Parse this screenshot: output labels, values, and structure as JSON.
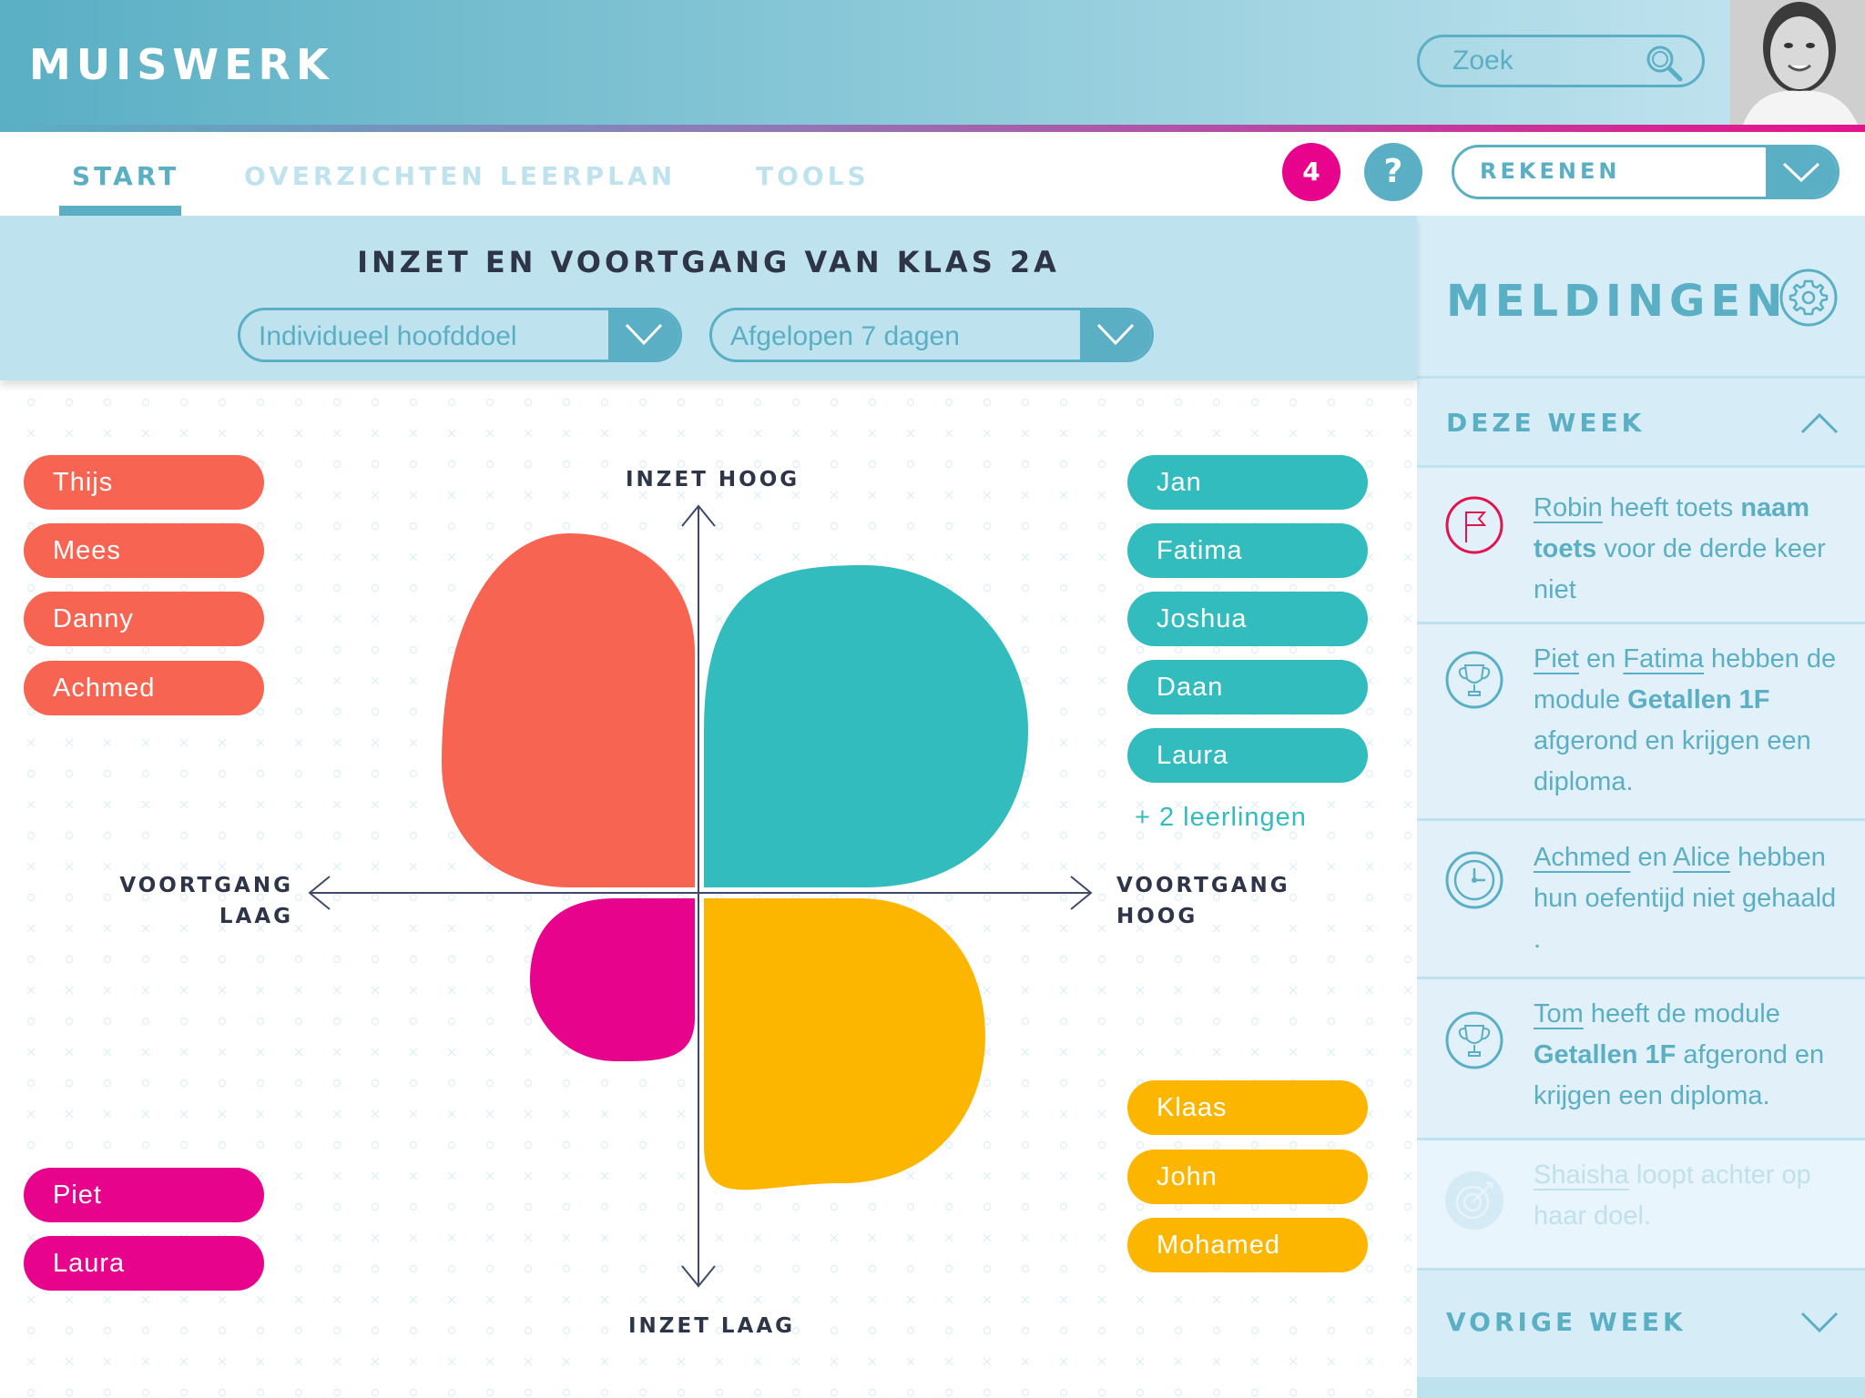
{
  "app": {
    "title": "MUISWERK"
  },
  "search": {
    "placeholder": "Zoek",
    "icon": "search-icon"
  },
  "user": {
    "avatar": "user-avatar-photo"
  },
  "tabs": [
    {
      "label": "START",
      "active": true
    },
    {
      "label": "OVERZICHTEN",
      "active": false
    },
    {
      "label": "LEERPLAN",
      "active": false
    },
    {
      "label": "TOOLS",
      "active": false
    }
  ],
  "toolbar": {
    "notification_count": "4",
    "help_label": "?",
    "subject_selected": "REKENEN"
  },
  "filters": {
    "title": "INZET EN VOORTGANG VAN KLAS 2A",
    "goal_selected": "Individueel  hoofddoel",
    "period_selected": "Afgelopen 7 dagen"
  },
  "colors": {
    "brand": "#5aafc4",
    "accent_pink": "#e8038c",
    "coral": "#f76451",
    "teal": "#33bcbd",
    "magenta": "#e8038c",
    "amber": "#fdb600",
    "dark_text": "#2e3548"
  },
  "chart": {
    "axis_top": "INZET HOOG",
    "axis_bottom": "INZET LAAG",
    "axis_left_line1": "VOORTGANG",
    "axis_left_line2": "LAAG",
    "axis_right_line1": "VOORTGANG",
    "axis_right_line2": "HOOG",
    "quadrants": {
      "high_effort_low_progress": {
        "color": "#f76451",
        "students": [
          "Thijs",
          "Mees",
          "Danny",
          "Achmed"
        ]
      },
      "high_effort_high_progress": {
        "color": "#33bcbd",
        "students": [
          "Jan",
          "Fatima",
          "Joshua",
          "Daan",
          "Laura"
        ],
        "more": "+ 2 leerlingen"
      },
      "low_effort_low_progress": {
        "color": "#e8038c",
        "students": [
          "Piet",
          "Laura"
        ]
      },
      "low_effort_high_progress": {
        "color": "#fdb600",
        "students": [
          "Klaas",
          "John",
          "Mohamed"
        ]
      }
    }
  },
  "sidebar": {
    "title": "MELDINGEN",
    "settings_icon": "gear-icon",
    "this_week": "DEZE WEEK",
    "last_week": "VORIGE WEEK",
    "notifications": [
      {
        "icon": "flag-icon",
        "parts": [
          [
            "link",
            "Robin"
          ],
          [
            "text",
            " heeft toets "
          ],
          [
            "bold",
            "naam toets"
          ],
          [
            "text",
            " voor de derde keer niet"
          ]
        ]
      },
      {
        "icon": "trophy-icon",
        "parts": [
          [
            "link",
            "Piet"
          ],
          [
            "text",
            " en "
          ],
          [
            "link",
            "Fatima"
          ],
          [
            "text",
            " hebben de module "
          ],
          [
            "bold",
            "Getallen 1F"
          ],
          [
            "text",
            "   afgerond en krijgen een diploma."
          ]
        ]
      },
      {
        "icon": "clock-icon",
        "parts": [
          [
            "link",
            "Achmed"
          ],
          [
            "text",
            " en "
          ],
          [
            "link",
            "Alice"
          ],
          [
            "text",
            " hebben hun oefentijd niet gehaald ."
          ]
        ]
      },
      {
        "icon": "trophy-icon",
        "parts": [
          [
            "link",
            "Tom"
          ],
          [
            "text",
            " heeft de module "
          ],
          [
            "bold",
            "Getallen 1F"
          ],
          [
            "text",
            " afgerond en krijgen een diploma."
          ]
        ]
      },
      {
        "icon": "target-icon",
        "faded": true,
        "parts": [
          [
            "link",
            "Shaisha"
          ],
          [
            "text",
            " loopt achter op haar doel."
          ]
        ]
      }
    ]
  }
}
